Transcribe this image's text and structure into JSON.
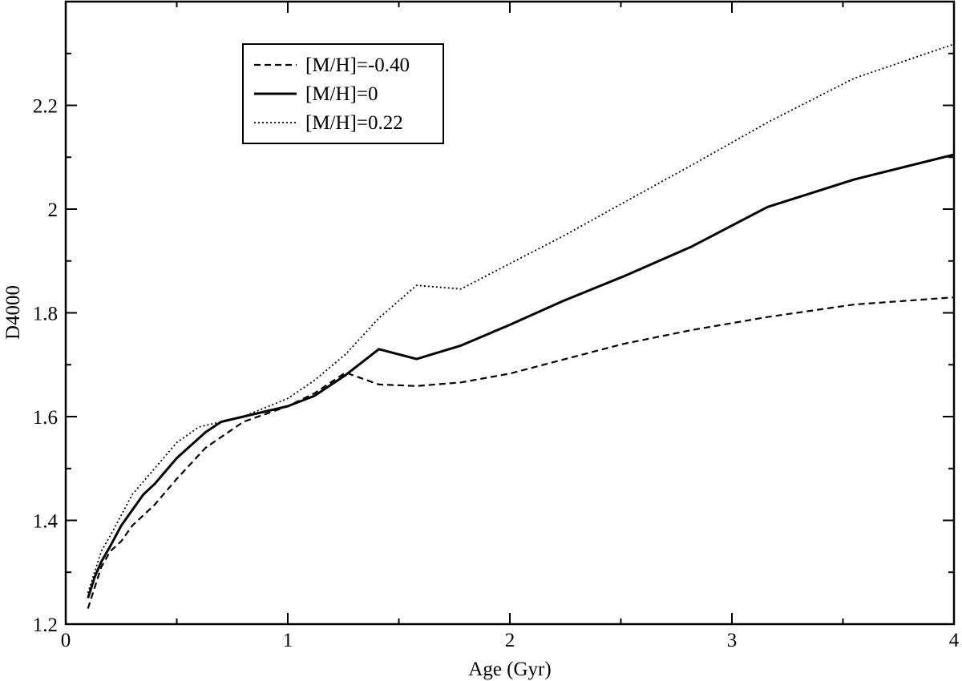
{
  "chart_data": {
    "type": "line",
    "xlabel": "Age (Gyr)",
    "ylabel": "D4000",
    "xlim": [
      0,
      4
    ],
    "ylim": [
      1.2,
      2.4
    ],
    "xticks": [
      0,
      1,
      2,
      3,
      4
    ],
    "xtick_labels": [
      "0",
      "1",
      "2",
      "3",
      "4"
    ],
    "yticks": [
      1.2,
      1.4,
      1.6,
      1.8,
      2.0,
      2.2
    ],
    "ytick_labels": [
      "1.2",
      "1.4",
      "1.6",
      "1.8",
      "2",
      "2.2"
    ],
    "grid": false,
    "legend": "top-left",
    "series": [
      {
        "name": "[M/H]=-0.40",
        "style": "dashed",
        "points": [
          [
            0.1,
            1.23
          ],
          [
            0.13,
            1.27
          ],
          [
            0.16,
            1.31
          ],
          [
            0.2,
            1.34
          ],
          [
            0.25,
            1.36
          ],
          [
            0.3,
            1.39
          ],
          [
            0.4,
            1.43
          ],
          [
            0.5,
            1.48
          ],
          [
            0.63,
            1.54
          ],
          [
            0.8,
            1.59
          ],
          [
            1.0,
            1.62
          ],
          [
            1.12,
            1.645
          ],
          [
            1.26,
            1.685
          ],
          [
            1.41,
            1.662
          ],
          [
            1.58,
            1.659
          ],
          [
            1.78,
            1.666
          ],
          [
            2.0,
            1.683
          ],
          [
            2.24,
            1.71
          ],
          [
            2.51,
            1.74
          ],
          [
            2.82,
            1.767
          ],
          [
            3.16,
            1.792
          ],
          [
            3.55,
            1.816
          ],
          [
            4.0,
            1.83
          ]
        ]
      },
      {
        "name": "[M/H]=0",
        "style": "solid",
        "points": [
          [
            0.1,
            1.25
          ],
          [
            0.13,
            1.29
          ],
          [
            0.16,
            1.32
          ],
          [
            0.2,
            1.35
          ],
          [
            0.25,
            1.39
          ],
          [
            0.3,
            1.42
          ],
          [
            0.35,
            1.45
          ],
          [
            0.4,
            1.47
          ],
          [
            0.5,
            1.52
          ],
          [
            0.63,
            1.57
          ],
          [
            0.7,
            1.59
          ],
          [
            0.8,
            1.6
          ],
          [
            1.0,
            1.62
          ],
          [
            1.12,
            1.64
          ],
          [
            1.26,
            1.68
          ],
          [
            1.41,
            1.73
          ],
          [
            1.58,
            1.711
          ],
          [
            1.78,
            1.737
          ],
          [
            2.0,
            1.777
          ],
          [
            2.24,
            1.823
          ],
          [
            2.51,
            1.87
          ],
          [
            2.82,
            1.928
          ],
          [
            3.16,
            2.004
          ],
          [
            3.55,
            2.057
          ],
          [
            4.0,
            2.105
          ]
        ]
      },
      {
        "name": "[M/H]=0.22",
        "style": "dotted",
        "points": [
          [
            0.1,
            1.26
          ],
          [
            0.13,
            1.3
          ],
          [
            0.16,
            1.34
          ],
          [
            0.2,
            1.37
          ],
          [
            0.25,
            1.41
          ],
          [
            0.3,
            1.45
          ],
          [
            0.4,
            1.5
          ],
          [
            0.5,
            1.55
          ],
          [
            0.6,
            1.58
          ],
          [
            0.7,
            1.59
          ],
          [
            0.8,
            1.6
          ],
          [
            1.0,
            1.635
          ],
          [
            1.12,
            1.67
          ],
          [
            1.26,
            1.72
          ],
          [
            1.41,
            1.79
          ],
          [
            1.58,
            1.853
          ],
          [
            1.78,
            1.846
          ],
          [
            2.0,
            1.895
          ],
          [
            2.24,
            1.948
          ],
          [
            2.51,
            2.012
          ],
          [
            2.82,
            2.085
          ],
          [
            3.16,
            2.167
          ],
          [
            3.55,
            2.252
          ],
          [
            4.0,
            2.318
          ]
        ]
      }
    ]
  }
}
